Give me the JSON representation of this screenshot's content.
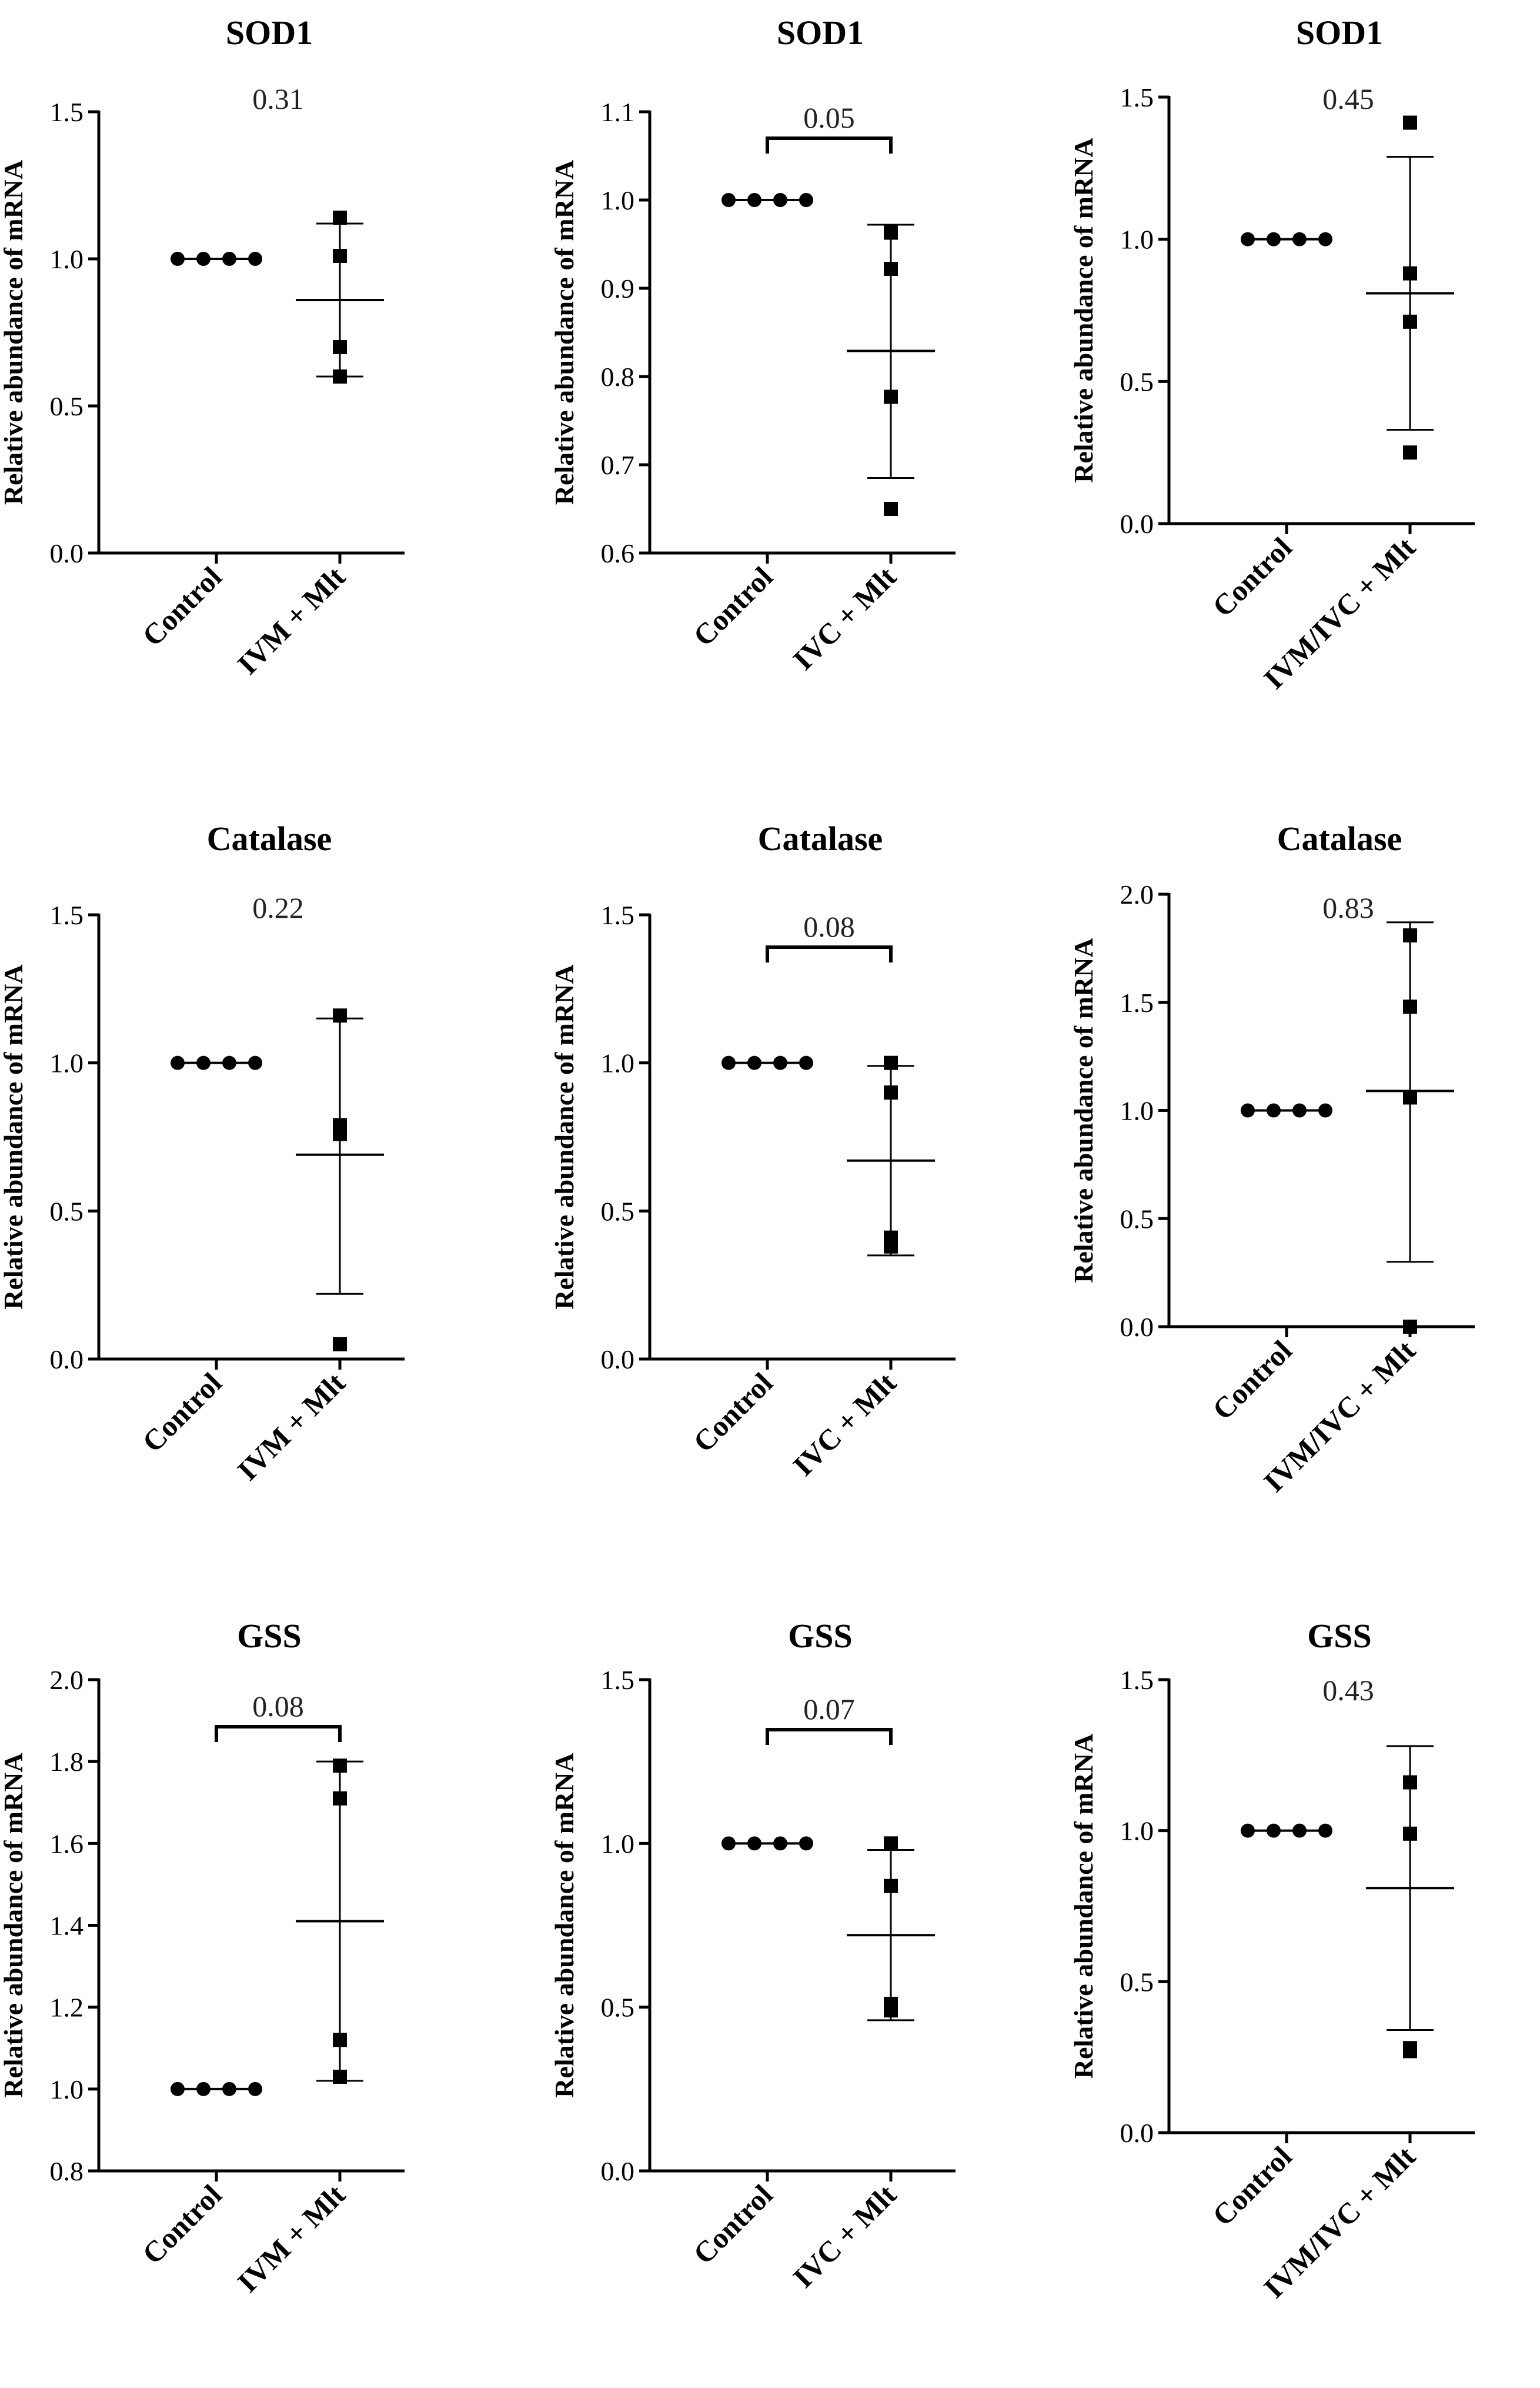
{
  "colors": {
    "ink": "#000000",
    "background": "#ffffff"
  },
  "chart_data": [
    {
      "type": "scatter",
      "title": "SOD1",
      "ylabel": "Relative abundance of mRNA",
      "categories": [
        "Control",
        "IVM + Mlt"
      ],
      "ylim": [
        0.0,
        1.5
      ],
      "yticks": [
        "0.0",
        "0.5",
        "1.0",
        "1.5"
      ],
      "p_value": "0.31",
      "bracket": false,
      "series": [
        {
          "name": "Control",
          "points": [
            1.0,
            1.0,
            1.0,
            1.0
          ],
          "mean": 1.0
        },
        {
          "name": "IVM + Mlt",
          "points": [
            1.14,
            1.01,
            0.7,
            0.6
          ],
          "mean": 0.86,
          "err_low": 0.6,
          "err_high": 1.12
        }
      ]
    },
    {
      "type": "scatter",
      "title": "SOD1",
      "ylabel": "Relative abundance of mRNA",
      "categories": [
        "Control",
        "IVC + Mlt"
      ],
      "ylim": [
        0.6,
        1.1
      ],
      "yticks": [
        "0.6",
        "0.7",
        "0.8",
        "0.9",
        "1.0",
        "1.1"
      ],
      "p_value": "0.05",
      "bracket": true,
      "series": [
        {
          "name": "Control",
          "points": [
            1.0,
            1.0,
            1.0,
            1.0
          ],
          "mean": 1.0
        },
        {
          "name": "IVC + Mlt",
          "points": [
            0.963,
            0.922,
            0.777,
            0.65
          ],
          "mean": 0.829,
          "err_low": 0.685,
          "err_high": 0.972
        }
      ]
    },
    {
      "type": "scatter",
      "title": "SOD1",
      "ylabel": "Relative abundance of mRNA",
      "categories": [
        "Control",
        "IVM/IVC + Mlt"
      ],
      "ylim": [
        0.0,
        1.5
      ],
      "yticks": [
        "0.0",
        "0.5",
        "1.0",
        "1.5"
      ],
      "p_value": "0.45",
      "bracket": false,
      "series": [
        {
          "name": "Control",
          "points": [
            1.0,
            1.0,
            1.0,
            1.0
          ],
          "mean": 1.0
        },
        {
          "name": "IVM/IVC + Mlt",
          "points": [
            1.41,
            0.88,
            0.71,
            0.25
          ],
          "mean": 0.81,
          "err_low": 0.33,
          "err_high": 1.29
        }
      ]
    },
    {
      "type": "scatter",
      "title": "Catalase",
      "ylabel": "Relative abundance of mRNA",
      "categories": [
        "Control",
        "IVM + Mlt"
      ],
      "ylim": [
        0.0,
        1.5
      ],
      "yticks": [
        "0.0",
        "0.5",
        "1.0",
        "1.5"
      ],
      "p_value": "0.22",
      "bracket": false,
      "series": [
        {
          "name": "Control",
          "points": [
            1.0,
            1.0,
            1.0,
            1.0
          ],
          "mean": 1.0
        },
        {
          "name": "IVM + Mlt",
          "points": [
            1.16,
            0.79,
            0.76,
            0.05
          ],
          "mean": 0.69,
          "err_low": 0.22,
          "err_high": 1.15
        }
      ]
    },
    {
      "type": "scatter",
      "title": "Catalase",
      "ylabel": "Relative abundance of mRNA",
      "categories": [
        "Control",
        "IVC + Mlt"
      ],
      "ylim": [
        0.0,
        1.5
      ],
      "yticks": [
        "0.0",
        "0.5",
        "1.0",
        "1.5"
      ],
      "p_value": "0.08",
      "bracket": true,
      "series": [
        {
          "name": "Control",
          "points": [
            1.0,
            1.0,
            1.0,
            1.0
          ],
          "mean": 1.0
        },
        {
          "name": "IVC + Mlt",
          "points": [
            1.0,
            0.9,
            0.41,
            0.38
          ],
          "mean": 0.67,
          "err_low": 0.35,
          "err_high": 0.99
        }
      ]
    },
    {
      "type": "scatter",
      "title": "Catalase",
      "ylabel": "Relative abundance of mRNA",
      "categories": [
        "Control",
        "IVM/IVC + Mlt"
      ],
      "ylim": [
        0.0,
        2.0
      ],
      "yticks": [
        "0.0",
        "0.5",
        "1.0",
        "1.5",
        "2.0"
      ],
      "p_value": "0.83",
      "bracket": false,
      "series": [
        {
          "name": "Control",
          "points": [
            1.0,
            1.0,
            1.0,
            1.0
          ],
          "mean": 1.0
        },
        {
          "name": "IVM/IVC + Mlt",
          "points": [
            1.81,
            1.48,
            1.06,
            0.0
          ],
          "mean": 1.09,
          "err_low": 0.3,
          "err_high": 1.87
        }
      ]
    },
    {
      "type": "scatter",
      "title": "GSS",
      "ylabel": "Relative abundance of mRNA",
      "categories": [
        "Control",
        "IVM + Mlt"
      ],
      "ylim": [
        0.8,
        2.0
      ],
      "yticks": [
        "0.8",
        "1.0",
        "1.2",
        "1.4",
        "1.6",
        "1.8",
        "2.0"
      ],
      "p_value": "0.08",
      "bracket": true,
      "series": [
        {
          "name": "Control",
          "points": [
            1.0,
            1.0,
            1.0,
            1.0
          ],
          "mean": 1.0
        },
        {
          "name": "IVM + Mlt",
          "points": [
            1.79,
            1.71,
            1.12,
            1.03
          ],
          "mean": 1.41,
          "err_low": 1.02,
          "err_high": 1.8
        }
      ]
    },
    {
      "type": "scatter",
      "title": "GSS",
      "ylabel": "Relative abundance of mRNA",
      "categories": [
        "Control",
        "IVC + Mlt"
      ],
      "ylim": [
        0.0,
        1.5
      ],
      "yticks": [
        "0.0",
        "0.5",
        "1.0",
        "1.5"
      ],
      "p_value": "0.07",
      "bracket": true,
      "series": [
        {
          "name": "Control",
          "points": [
            1.0,
            1.0,
            1.0,
            1.0
          ],
          "mean": 1.0
        },
        {
          "name": "IVC + Mlt",
          "points": [
            1.0,
            0.87,
            0.51,
            0.49
          ],
          "mean": 0.72,
          "err_low": 0.46,
          "err_high": 0.98
        }
      ]
    },
    {
      "type": "scatter",
      "title": "GSS",
      "ylabel": "Relative abundance of mRNA",
      "categories": [
        "Control",
        "IVM/IVC + Mlt"
      ],
      "ylim": [
        0.0,
        1.5
      ],
      "yticks": [
        "0.0",
        "0.5",
        "1.0",
        "1.5"
      ],
      "p_value": "0.43",
      "bracket": false,
      "series": [
        {
          "name": "Control",
          "points": [
            1.0,
            1.0,
            1.0,
            1.0
          ],
          "mean": 1.0
        },
        {
          "name": "IVM/IVC + Mlt",
          "points": [
            1.16,
            0.99,
            0.27,
            0.28
          ],
          "mean": 0.81,
          "err_low": 0.34,
          "err_high": 1.28
        }
      ]
    }
  ]
}
